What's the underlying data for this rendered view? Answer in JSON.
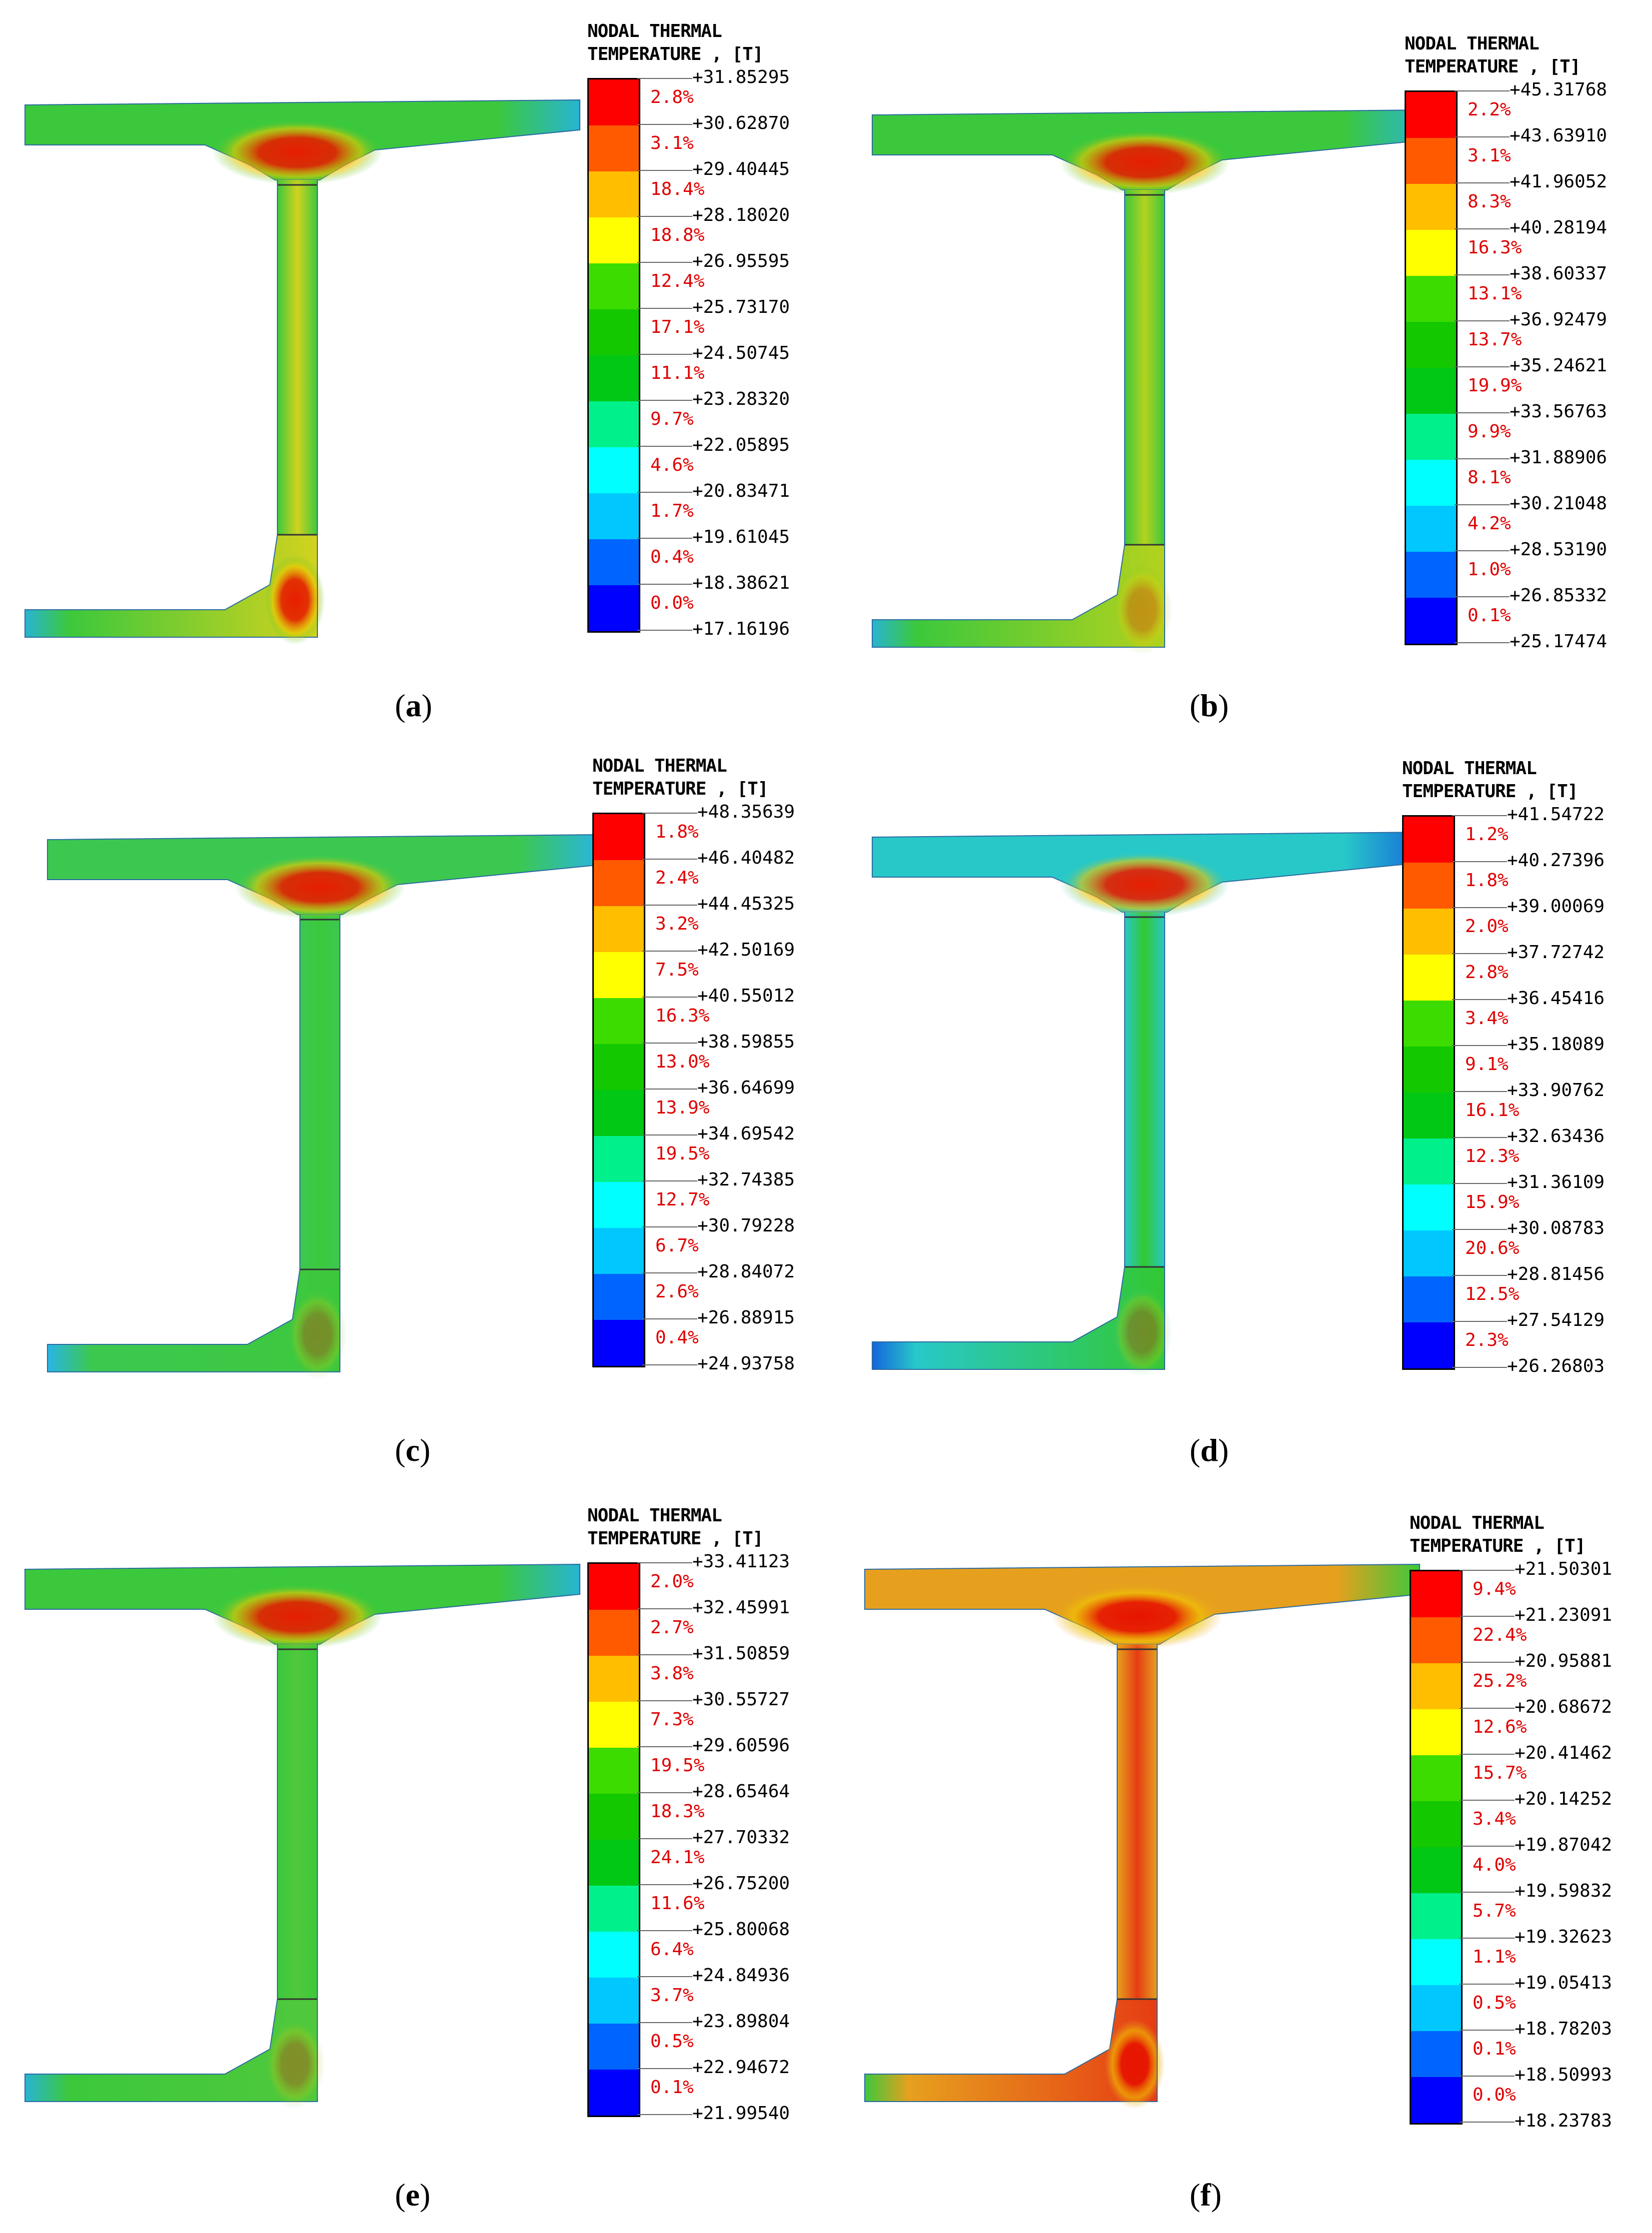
{
  "legend_title_line1": "NODAL THERMAL",
  "legend_title_line2": "TEMPERATURE , [T]",
  "legend_colors": [
    "#ff0000",
    "#ff5a00",
    "#ffbe00",
    "#ffff00",
    "#3cdc00",
    "#14c800",
    "#00c814",
    "#00f08c",
    "#00ffff",
    "#00c8ff",
    "#0064ff",
    "#0000ff"
  ],
  "panels": [
    {
      "id": "a",
      "caption": "a",
      "beam_palette": {
        "flange": "#3cc83c",
        "web": "#d2d21e",
        "hot": "#e61e00",
        "edge": "#28b4d2"
      },
      "values": [
        "+31.85295",
        "+30.62870",
        "+29.40445",
        "+28.18020",
        "+26.95595",
        "+25.73170",
        "+24.50745",
        "+23.28320",
        "+22.05895",
        "+20.83471",
        "+19.61045",
        "+18.38621",
        "+17.16196"
      ],
      "percents": [
        "2.8%",
        "3.1%",
        "18.4%",
        "18.8%",
        "12.4%",
        "17.1%",
        "11.1%",
        "9.7%",
        "4.6%",
        "1.7%",
        "0.4%",
        "0.0%"
      ]
    },
    {
      "id": "b",
      "caption": "b",
      "beam_palette": {
        "flange": "#3cc83c",
        "web": "#b4d21e",
        "hot": "#e61e00",
        "edge": "#28b4d2"
      },
      "values": [
        "+45.31768",
        "+43.63910",
        "+41.96052",
        "+40.28194",
        "+38.60337",
        "+36.92479",
        "+35.24621",
        "+33.56763",
        "+31.88906",
        "+30.21048",
        "+28.53190",
        "+26.85332",
        "+25.17474"
      ],
      "percents": [
        "2.2%",
        "3.1%",
        "8.3%",
        "16.3%",
        "13.1%",
        "13.7%",
        "19.9%",
        "9.9%",
        "8.1%",
        "4.2%",
        "1.0%",
        "0.1%"
      ]
    },
    {
      "id": "c",
      "caption": "c",
      "beam_palette": {
        "flange": "#3cc850",
        "web": "#3cc83c",
        "hot": "#e61e00",
        "edge": "#28b4e6"
      },
      "values": [
        "+48.35639",
        "+46.40482",
        "+44.45325",
        "+42.50169",
        "+40.55012",
        "+38.59855",
        "+36.64699",
        "+34.69542",
        "+32.74385",
        "+30.79228",
        "+28.84072",
        "+26.88915",
        "+24.93758"
      ],
      "percents": [
        "1.8%",
        "2.4%",
        "3.2%",
        "7.5%",
        "16.3%",
        "13.0%",
        "13.9%",
        "19.5%",
        "12.7%",
        "6.7%",
        "2.6%",
        "0.4%"
      ]
    },
    {
      "id": "d",
      "caption": "d",
      "beam_palette": {
        "flange": "#28c8c8",
        "web": "#32c832",
        "hot": "#e61e00",
        "edge": "#1464dc"
      },
      "values": [
        "+41.54722",
        "+40.27396",
        "+39.00069",
        "+37.72742",
        "+36.45416",
        "+35.18089",
        "+33.90762",
        "+32.63436",
        "+31.36109",
        "+30.08783",
        "+28.81456",
        "+27.54129",
        "+26.26803"
      ],
      "percents": [
        "1.2%",
        "1.8%",
        "2.0%",
        "2.8%",
        "3.4%",
        "9.1%",
        "16.1%",
        "12.3%",
        "15.9%",
        "20.6%",
        "12.5%",
        "2.3%"
      ]
    },
    {
      "id": "e",
      "caption": "e",
      "beam_palette": {
        "flange": "#3cc83c",
        "web": "#50c83c",
        "hot": "#e61e00",
        "edge": "#28b4d2"
      },
      "values": [
        "+33.41123",
        "+32.45991",
        "+31.50859",
        "+30.55727",
        "+29.60596",
        "+28.65464",
        "+27.70332",
        "+26.75200",
        "+25.80068",
        "+24.84936",
        "+23.89804",
        "+22.94672",
        "+21.99540"
      ],
      "percents": [
        "2.0%",
        "2.7%",
        "3.8%",
        "7.3%",
        "19.5%",
        "18.3%",
        "24.1%",
        "11.6%",
        "6.4%",
        "3.7%",
        "0.5%",
        "0.1%"
      ]
    },
    {
      "id": "f",
      "caption": "f",
      "beam_palette": {
        "flange": "#e6a01e",
        "web": "#e63c14",
        "hot": "#e61400",
        "edge": "#3cc83c"
      },
      "values": [
        "+21.50301",
        "+21.23091",
        "+20.95881",
        "+20.68672",
        "+20.41462",
        "+20.14252",
        "+19.87042",
        "+19.59832",
        "+19.32623",
        "+19.05413",
        "+18.78203",
        "+18.50993",
        "+18.23783"
      ],
      "percents": [
        "9.4%",
        "22.4%",
        "25.2%",
        "12.6%",
        "15.7%",
        "3.4%",
        "4.0%",
        "5.7%",
        "1.1%",
        "0.5%",
        "0.1%",
        "0.0%"
      ]
    }
  ]
}
